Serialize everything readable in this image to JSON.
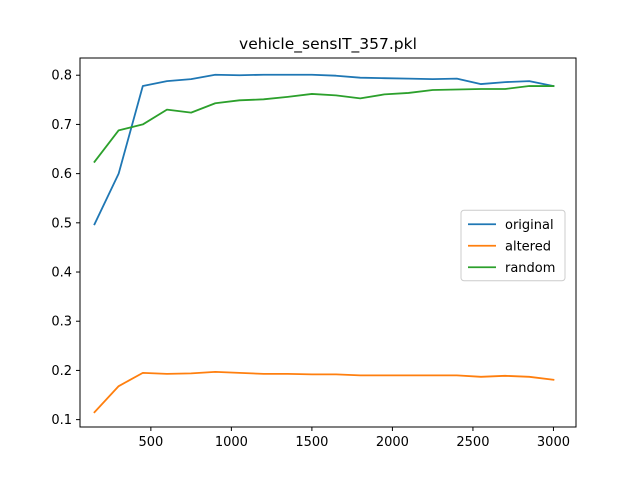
{
  "chart_data": {
    "type": "line",
    "title": "vehicle_sensIT_357.pkl",
    "xlabel": "",
    "ylabel": "",
    "xlim": [
      60,
      3140
    ],
    "ylim": [
      0.085,
      0.835
    ],
    "xticks": [
      500,
      1000,
      1500,
      2000,
      2500,
      3000
    ],
    "xtick_labels": [
      "500",
      "1000",
      "1500",
      "2000",
      "2500",
      "3000"
    ],
    "yticks": [
      0.1,
      0.2,
      0.3,
      0.4,
      0.5,
      0.6,
      0.7,
      0.8
    ],
    "ytick_labels": [
      "0.1",
      "0.2",
      "0.3",
      "0.4",
      "0.5",
      "0.6",
      "0.7",
      "0.8"
    ],
    "grid": false,
    "legend": {
      "position": "center-right"
    },
    "x": [
      150,
      300,
      450,
      600,
      750,
      900,
      1050,
      1200,
      1350,
      1500,
      1650,
      1800,
      1950,
      2100,
      2250,
      2400,
      2550,
      2700,
      2850,
      3000
    ],
    "series": [
      {
        "name": "original",
        "color": "#1f77b4",
        "values": [
          0.497,
          0.6,
          0.778,
          0.788,
          0.792,
          0.801,
          0.8,
          0.801,
          0.801,
          0.801,
          0.799,
          0.795,
          0.794,
          0.793,
          0.792,
          0.793,
          0.782,
          0.786,
          0.788,
          0.778
        ]
      },
      {
        "name": "altered",
        "color": "#ff7f0e",
        "values": [
          0.115,
          0.168,
          0.195,
          0.193,
          0.194,
          0.197,
          0.195,
          0.193,
          0.193,
          0.192,
          0.192,
          0.19,
          0.19,
          0.19,
          0.19,
          0.19,
          0.187,
          0.189,
          0.187,
          0.181
        ]
      },
      {
        "name": "random",
        "color": "#2ca02c",
        "values": [
          0.624,
          0.688,
          0.7,
          0.73,
          0.724,
          0.743,
          0.749,
          0.751,
          0.756,
          0.762,
          0.759,
          0.753,
          0.761,
          0.764,
          0.77,
          0.771,
          0.772,
          0.772,
          0.778,
          0.778
        ]
      }
    ]
  }
}
